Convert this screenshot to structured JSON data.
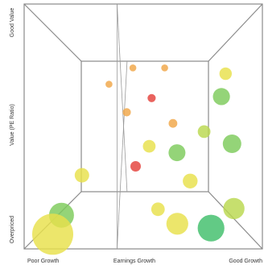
{
  "chart_data": {
    "type": "scatter",
    "subtype": "3d-bubble",
    "title": "",
    "x_axis": {
      "title": "Earnings Growth",
      "min_label": "Poor Growth",
      "max_label": "Good Growth",
      "range": [
        0,
        10
      ]
    },
    "y_axis": {
      "title": "Value (PE Ratio)",
      "min_label": "Overpriced",
      "max_label": "Good Value",
      "range": [
        0,
        10
      ]
    },
    "z_axis": {
      "range": [
        0,
        1
      ]
    },
    "grid": false,
    "legend": "none",
    "colors": {
      "red": "#e4413b",
      "orange": "#f0a647",
      "yellow": "#e8e14b",
      "yellowgreen": "#b9d84e",
      "green": "#7ccb5a",
      "teal": "#3fbe6a"
    },
    "points": [
      {
        "x": 2.3,
        "y": 8.1,
        "z": 0.95,
        "r": 0.22,
        "color": "orange"
      },
      {
        "x": 4.1,
        "y": 9.3,
        "z": 0.95,
        "r": 0.22,
        "color": "orange"
      },
      {
        "x": 6.5,
        "y": 9.3,
        "z": 0.95,
        "r": 0.22,
        "color": "orange"
      },
      {
        "x": 3.7,
        "y": 6.0,
        "z": 0.9,
        "r": 0.25,
        "color": "orange"
      },
      {
        "x": 5.5,
        "y": 7.0,
        "z": 0.9,
        "r": 0.25,
        "color": "red"
      },
      {
        "x": 9.6,
        "y": 7.9,
        "z": 0.55,
        "r": 0.3,
        "color": "yellow"
      },
      {
        "x": 6.9,
        "y": 5.2,
        "z": 0.8,
        "r": 0.25,
        "color": "orange"
      },
      {
        "x": 8.6,
        "y": 4.7,
        "z": 0.65,
        "r": 0.33,
        "color": "yellowgreen"
      },
      {
        "x": 9.0,
        "y": 6.5,
        "z": 0.4,
        "r": 0.38,
        "color": "green"
      },
      {
        "x": 9.2,
        "y": 4.2,
        "z": 0.25,
        "r": 0.38,
        "color": "green"
      },
      {
        "x": 5.3,
        "y": 3.8,
        "z": 0.7,
        "r": 0.34,
        "color": "yellow"
      },
      {
        "x": 6.8,
        "y": 3.6,
        "z": 0.5,
        "r": 0.4,
        "color": "green"
      },
      {
        "x": 7.6,
        "y": 2.0,
        "z": 0.55,
        "r": 0.36,
        "color": "yellow"
      },
      {
        "x": 1.6,
        "y": 2.4,
        "z": 0.5,
        "r": 0.34,
        "color": "yellow"
      },
      {
        "x": 5.8,
        "y": 0.3,
        "z": 0.6,
        "r": 0.34,
        "color": "yellow"
      },
      {
        "x": 4.4,
        "y": 2.4,
        "z": 0.8,
        "r": 0.3,
        "color": "red"
      },
      {
        "x": 1.2,
        "y": 1.0,
        "z": 0.2,
        "r": 0.5,
        "color": "green"
      },
      {
        "x": 9.4,
        "y": 1.1,
        "z": 0.3,
        "r": 0.45,
        "color": "yellowgreen"
      },
      {
        "x": 6.6,
        "y": 0.5,
        "z": 0.25,
        "r": 0.45,
        "color": "yellow"
      },
      {
        "x": 8.2,
        "y": 0.3,
        "z": 0.25,
        "r": 0.55,
        "color": "teal"
      },
      {
        "x": 1.2,
        "y": 0.6,
        "z": 0.0,
        "r": 0.75,
        "color": "yellow"
      }
    ]
  }
}
